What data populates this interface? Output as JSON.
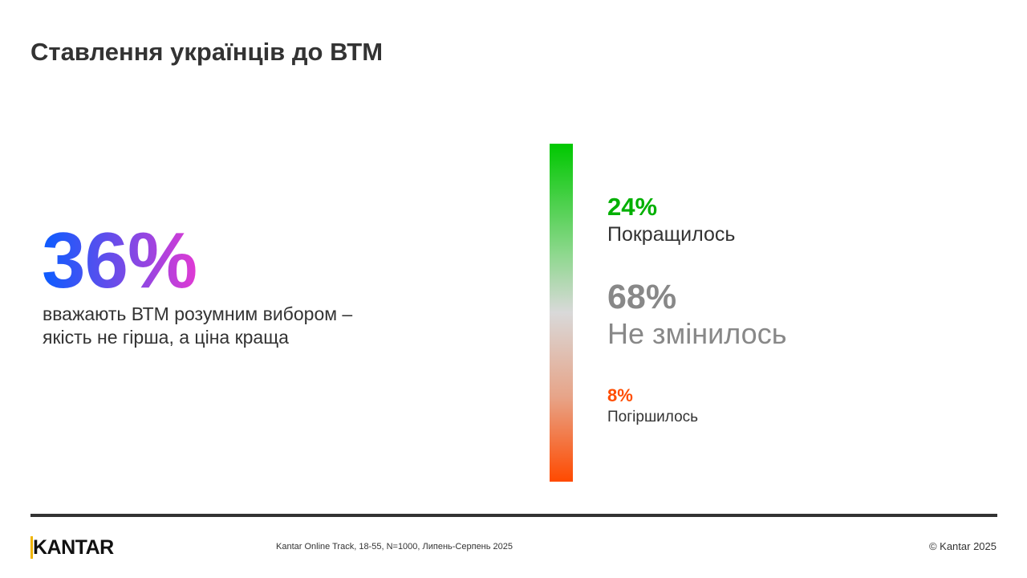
{
  "title": "Ставлення українців до ВТМ",
  "highlight": {
    "value": "36%",
    "description_line1": "вважають ВТМ розумним вибором –",
    "description_line2": "якість не гірша, а ціна краща"
  },
  "scale": {
    "improved": {
      "value": "24%",
      "label": "Покращилось",
      "color": "#00b000"
    },
    "unchanged": {
      "value": "68%",
      "label": "Не змінилось",
      "color": "#888888"
    },
    "worsened": {
      "value": "8%",
      "label": "Погіршилось",
      "color": "#ff4d00"
    }
  },
  "footer": {
    "logo": "KANTAR",
    "source": "Kantar  Online Track, 18-55, N=1000, Липень-Серпень 2025",
    "copyright": "© Kantar 2025"
  }
}
